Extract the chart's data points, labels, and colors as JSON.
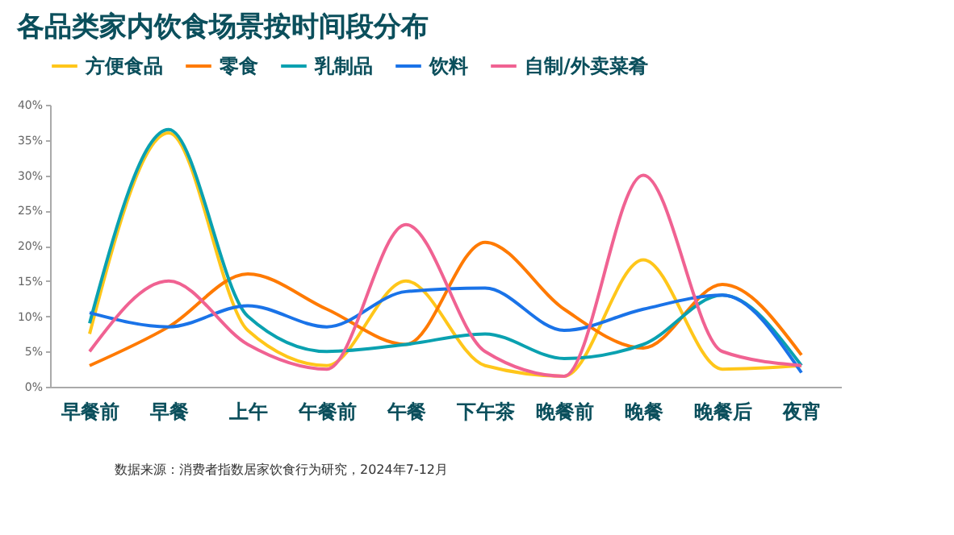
{
  "chart_data": {
    "type": "line",
    "title": "各品类家内饮食场景按时间段分布",
    "categories": [
      "早餐前",
      "早餐",
      "上午",
      "午餐前",
      "午餐",
      "下午茶",
      "晚餐前",
      "晚餐",
      "晚餐后",
      "夜宵"
    ],
    "series": [
      {
        "name": "方便食品",
        "color": "#ffc61a",
        "values": [
          7.5,
          36,
          8,
          3,
          15,
          3,
          1.5,
          18,
          2.5,
          3
        ]
      },
      {
        "name": "零食",
        "color": "#ff7a00",
        "values": [
          3,
          8.5,
          16,
          11,
          6,
          20.5,
          11,
          5.5,
          14.5,
          4.5
        ]
      },
      {
        "name": "乳制品",
        "color": "#0aa1b0",
        "values": [
          9,
          36.5,
          10,
          5,
          6,
          7.5,
          4,
          6,
          13,
          3
        ]
      },
      {
        "name": "饮料",
        "color": "#1a73e8",
        "values": [
          10.5,
          8.5,
          11.5,
          8.5,
          13.5,
          14,
          8,
          11,
          13,
          2
        ]
      },
      {
        "name": "自制/外卖菜肴",
        "color": "#f06292",
        "values": [
          5,
          15,
          6,
          2.5,
          23,
          5,
          1.5,
          30,
          5,
          3
        ]
      }
    ],
    "ylim": [
      0,
      40
    ],
    "yticks": [
      {
        "value": 0,
        "label": "0%"
      },
      {
        "value": 5,
        "label": "5%"
      },
      {
        "value": 10,
        "label": "10%"
      },
      {
        "value": 15,
        "label": "15%"
      },
      {
        "value": 20,
        "label": "20%"
      },
      {
        "value": 25,
        "label": "25%"
      },
      {
        "value": 30,
        "label": "30%"
      },
      {
        "value": 35,
        "label": "35%"
      },
      {
        "value": 40,
        "label": "40%"
      }
    ],
    "grid": false,
    "legend": "top",
    "marker": "none",
    "line_style": "solid",
    "annotations": [
      "数据来源：消费者指数居家饮食行为研究，2024年7-12月"
    ]
  }
}
